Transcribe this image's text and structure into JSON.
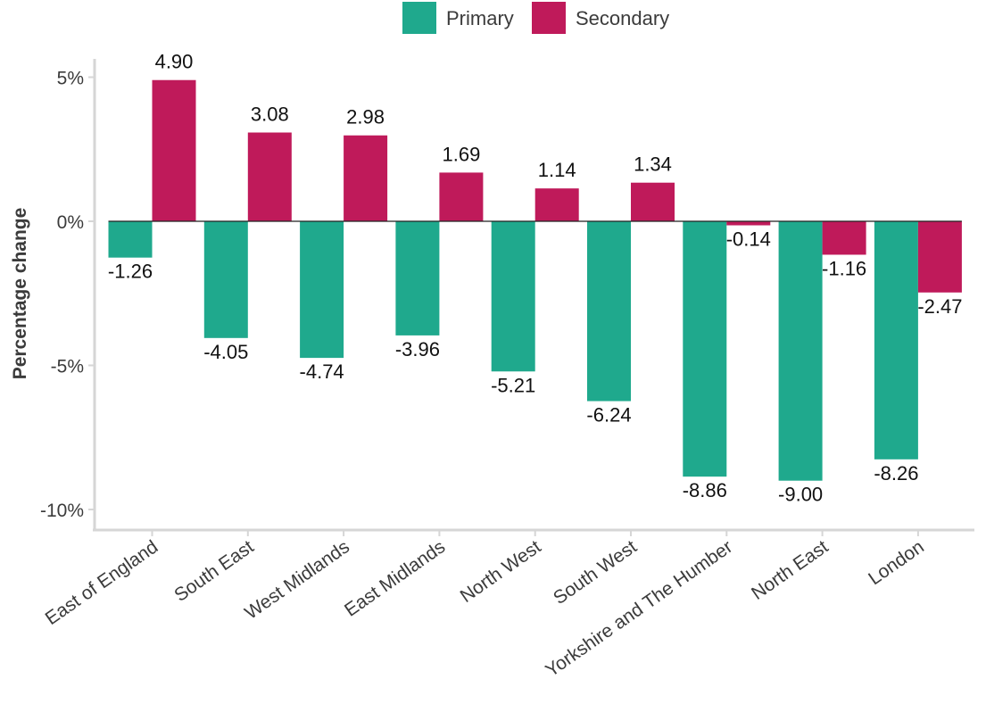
{
  "chart_data": {
    "type": "bar",
    "title": "",
    "xlabel": "",
    "ylabel": "Percentage change",
    "ylim": [
      -10.8,
      5.6
    ],
    "yticks": [
      5,
      0,
      -5,
      -10
    ],
    "ytick_labels": [
      "5%",
      "0%",
      "-5%",
      "-10%"
    ],
    "grid": false,
    "legend_position": "top-center",
    "categories": [
      "East of England",
      "South East",
      "West Midlands",
      "East Midlands",
      "North West",
      "South West",
      "Yorkshire and The Humber",
      "North East",
      "London"
    ],
    "series": [
      {
        "name": "Primary",
        "color": "#1fa98d",
        "values": [
          -1.26,
          -4.05,
          -4.74,
          -3.96,
          -5.21,
          -6.24,
          -8.86,
          -9.0,
          -8.26
        ],
        "labels": [
          "-1.26",
          "-4.05",
          "-4.74",
          "-3.96",
          "-5.21",
          "-6.24",
          "-8.86",
          "-9.00",
          "-8.26"
        ]
      },
      {
        "name": "Secondary",
        "color": "#bf1a5a",
        "values": [
          4.9,
          3.08,
          2.98,
          1.69,
          1.14,
          1.34,
          -0.14,
          -1.16,
          -2.47
        ],
        "labels": [
          "4.90",
          "3.08",
          "2.98",
          "1.69",
          "1.14",
          "1.34",
          "-0.14",
          "-1.16",
          "-2.47"
        ]
      }
    ]
  }
}
